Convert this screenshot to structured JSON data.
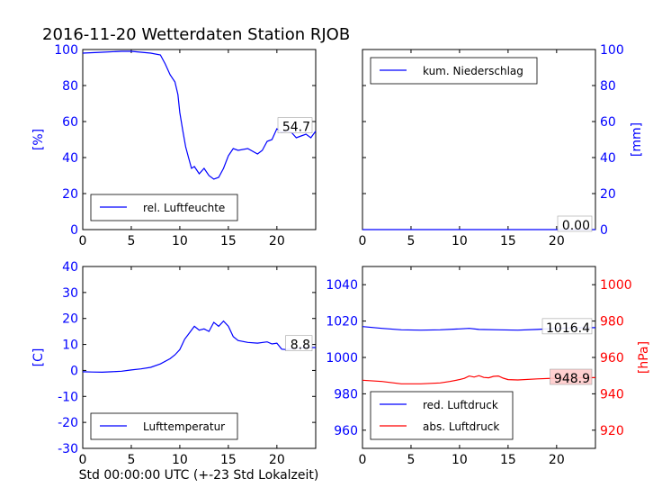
{
  "figure": {
    "title": "2016-11-20 Wetterdaten Station RJOB",
    "xlabel": "Std 00:00:00 UTC (+-23 Std Lokalzeit)"
  },
  "chart_data": [
    {
      "id": "humidity",
      "type": "line",
      "ylabel": "[%]",
      "xlim": [
        0,
        24
      ],
      "ylim": [
        0,
        100
      ],
      "xticks": [
        0,
        5,
        10,
        15,
        20
      ],
      "yticks": [
        0,
        20,
        40,
        60,
        80,
        100
      ],
      "legend": "lower-left",
      "series": [
        {
          "name": "rel. Luftfeuchte",
          "color": "#0000ff",
          "x": [
            0,
            2,
            4,
            5,
            6,
            7,
            8,
            8.5,
            9,
            9.5,
            9.8,
            10,
            10.3,
            10.6,
            10.9,
            11.2,
            11.5,
            12,
            12.5,
            13,
            13.5,
            14,
            14.5,
            15,
            15.5,
            16,
            17,
            18,
            18.5,
            19,
            19.5,
            20,
            20.5,
            21,
            21.5,
            22,
            22.5,
            23,
            23.5,
            24
          ],
          "y": [
            98,
            98.5,
            99,
            99,
            98.5,
            98,
            97,
            92,
            86,
            82,
            75,
            65,
            55,
            46,
            40,
            34,
            35,
            31,
            34,
            30,
            28,
            29,
            34,
            41,
            45,
            44,
            45,
            42,
            44,
            49,
            50,
            56,
            54,
            55,
            54,
            51,
            52,
            53,
            51,
            54.7
          ]
        }
      ],
      "annotation": "54.7"
    },
    {
      "id": "precipitation",
      "type": "line",
      "ylabel": "[mm]",
      "xlim": [
        0,
        24
      ],
      "ylim": [
        0,
        100
      ],
      "xticks": [
        0,
        5,
        10,
        15,
        20
      ],
      "yticks": [
        0,
        20,
        40,
        60,
        80,
        100
      ],
      "legend": "top-left",
      "series": [
        {
          "name": "kum. Niederschlag",
          "color": "#0000ff",
          "x": [
            0,
            24
          ],
          "y": [
            0,
            0
          ]
        }
      ],
      "annotation": "0.00"
    },
    {
      "id": "temperature",
      "type": "line",
      "ylabel": "[C]",
      "xlim": [
        0,
        24
      ],
      "ylim": [
        -30,
        40
      ],
      "xticks": [
        0,
        5,
        10,
        15,
        20
      ],
      "yticks": [
        -30,
        -20,
        -10,
        0,
        10,
        20,
        30,
        40
      ],
      "legend": "lower-left",
      "series": [
        {
          "name": "Lufttemperatur",
          "color": "#0000ff",
          "x": [
            0,
            1,
            2,
            3,
            4,
            5,
            6,
            7,
            8,
            9,
            9.5,
            10,
            10.5,
            11,
            11.5,
            12,
            12.5,
            13,
            13.5,
            14,
            14.5,
            15,
            15.5,
            16,
            17,
            18,
            19,
            19.5,
            20,
            20.5,
            21,
            22,
            23,
            24
          ],
          "y": [
            -0.5,
            -0.6,
            -0.7,
            -0.5,
            -0.3,
            0.2,
            0.6,
            1.2,
            2.5,
            4.5,
            6.0,
            8.0,
            12.0,
            14.5,
            17.0,
            15.5,
            16.0,
            15.0,
            18.5,
            17.0,
            19.0,
            17.0,
            13.0,
            11.5,
            10.8,
            10.5,
            11.0,
            10.2,
            10.5,
            8.2,
            8.0,
            8.5,
            8.8,
            8.8
          ]
        }
      ],
      "annotation": "8.8"
    },
    {
      "id": "pressure",
      "type": "line",
      "ylim": [
        950,
        1050
      ],
      "yticks": [
        960,
        980,
        1000,
        1020,
        1040
      ],
      "y2label": "[hPa]",
      "y2lim": [
        910,
        1010
      ],
      "y2ticks": [
        920,
        940,
        960,
        980,
        1000
      ],
      "xlim": [
        0,
        24
      ],
      "xticks": [
        0,
        5,
        10,
        15,
        20
      ],
      "legend": "lower-left",
      "series": [
        {
          "name": "red. Luftdruck",
          "color": "#0000ff",
          "axis": "left",
          "x": [
            0,
            2,
            4,
            6,
            8,
            10,
            11,
            12,
            14,
            16,
            18,
            20,
            22,
            24
          ],
          "y": [
            1017,
            1016,
            1015.2,
            1015,
            1015.2,
            1015.7,
            1016,
            1015.4,
            1015.2,
            1015,
            1015.4,
            1016,
            1016.3,
            1016.4
          ]
        },
        {
          "name": "abs. Luftdruck",
          "color": "#ff0000",
          "axis": "right",
          "x": [
            0,
            2,
            4,
            6,
            8,
            9,
            10,
            10.5,
            11,
            11.5,
            12,
            12.5,
            13,
            13.5,
            14,
            14.5,
            15,
            16,
            18,
            20,
            22,
            24
          ],
          "y": [
            947.5,
            946.8,
            945.5,
            945.5,
            946.0,
            946.8,
            947.8,
            948.5,
            949.8,
            949.2,
            950.0,
            949.0,
            948.8,
            949.6,
            949.8,
            948.6,
            947.8,
            947.6,
            948.2,
            948.6,
            948.8,
            948.9
          ]
        }
      ],
      "annotation_left": "1016.4",
      "annotation_right": "948.9"
    }
  ]
}
